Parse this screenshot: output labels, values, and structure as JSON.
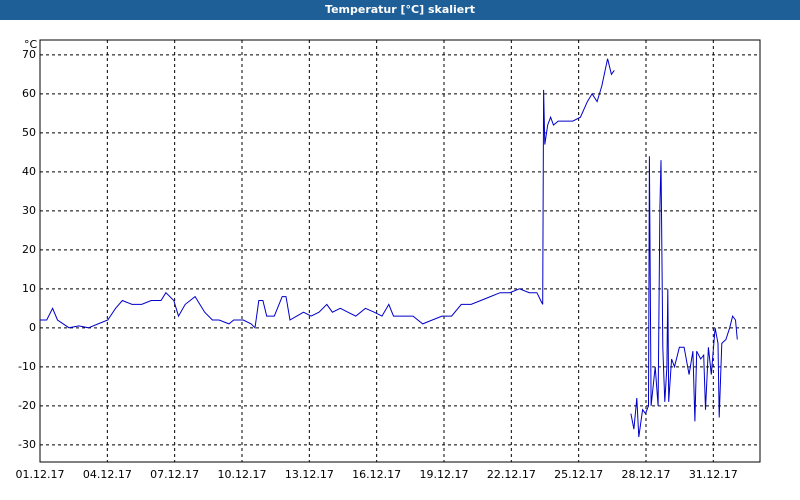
{
  "chart_data": {
    "type": "line",
    "title": "Temperatur [°C] skaliert",
    "y_label": "°C",
    "x": [
      0,
      0.3,
      0.56,
      0.78,
      1.04,
      1.29,
      1.73,
      2.16,
      2.59,
      3.02,
      3.37,
      3.67,
      4.1,
      4.53,
      4.96,
      5.39,
      5.61,
      5.96,
      6.17,
      6.47,
      6.91,
      7.34,
      7.68,
      7.98,
      8.42,
      8.63,
      9.06,
      9.41,
      9.58,
      9.75,
      9.93,
      10.1,
      10.44,
      10.79,
      10.96,
      11.14,
      11.44,
      11.74,
      12.08,
      12.43,
      12.78,
      13.03,
      13.38,
      13.72,
      14.07,
      14.5,
      14.89,
      15.24,
      15.54,
      15.75,
      16.18,
      16.62,
      17.05,
      17.48,
      17.91,
      18.34,
      18.77,
      19.21,
      19.64,
      20.07,
      20.5,
      20.93,
      21.36,
      21.8,
      22.14,
      22.31,
      22.4,
      22.44,
      22.49,
      22.62,
      22.75,
      22.88,
      23.09,
      23.31,
      23.74,
      24.08,
      24.39,
      24.6,
      24.82,
      25.03,
      25.29,
      25.46,
      25.59,
      25.9,
      26.33,
      26.46,
      26.59,
      26.68,
      26.85,
      26.98,
      27.11,
      27.15,
      27.23,
      27.41,
      27.54,
      27.62,
      27.67,
      27.75,
      27.84,
      27.93,
      27.97,
      28.01,
      28.14,
      28.27,
      28.49,
      28.7,
      28.92,
      29.09,
      29.18,
      29.26,
      29.44,
      29.57,
      29.65,
      29.78,
      29.91,
      30.08,
      30.21,
      30.26,
      30.38,
      30.56,
      30.73,
      30.86,
      30.99,
      31.07
    ],
    "series": [
      {
        "color": "#0000c8",
        "values": [
          2,
          2,
          5,
          2,
          1,
          0,
          0.5,
          0,
          1,
          2,
          5,
          7,
          6,
          6,
          7,
          7,
          9,
          7,
          3,
          6,
          8,
          4,
          2,
          2,
          1,
          2,
          2,
          1,
          0,
          7,
          7,
          3,
          3,
          8,
          8,
          2,
          3,
          4,
          3,
          4,
          6,
          4,
          5,
          4,
          3,
          5,
          4,
          3,
          6,
          3,
          3,
          3,
          1,
          2,
          3,
          3,
          6,
          6,
          7,
          8,
          9,
          9,
          10,
          9,
          9,
          7,
          6,
          61,
          47,
          52,
          54,
          52,
          53,
          53,
          53,
          54,
          58,
          60,
          58,
          62,
          69,
          65,
          66,
          null,
          -22,
          -26,
          -18,
          -28,
          -21,
          -22,
          -20,
          44,
          -20,
          -10,
          -20,
          31,
          43,
          -5,
          -19,
          -10,
          10,
          -19,
          -8,
          -10,
          -5,
          -5,
          -12,
          -6,
          -24,
          -6,
          -8,
          -7,
          -21,
          -5,
          -12,
          0,
          -4,
          -23,
          -4,
          -3,
          0,
          3,
          2,
          -3
        ]
      }
    ],
    "xlim": [
      0,
      32.08
    ],
    "xticks": [
      {
        "value": 0,
        "label": "01.12.17"
      },
      {
        "value": 3,
        "label": "04.12.17"
      },
      {
        "value": 6,
        "label": "07.12.17"
      },
      {
        "value": 9,
        "label": "10.12.17"
      },
      {
        "value": 12,
        "label": "13.12.17"
      },
      {
        "value": 15,
        "label": "16.12.17"
      },
      {
        "value": 18,
        "label": "19.12.17"
      },
      {
        "value": 21,
        "label": "22.12.17"
      },
      {
        "value": 24,
        "label": "25.12.17"
      },
      {
        "value": 27,
        "label": "28.12.17"
      },
      {
        "value": 30,
        "label": "31.12.17"
      }
    ],
    "ylim": [
      -34.4,
      73.8
    ],
    "yticks": [
      -30,
      -20,
      -10,
      0,
      10,
      20,
      30,
      40,
      50,
      60,
      70
    ],
    "grid": true
  }
}
